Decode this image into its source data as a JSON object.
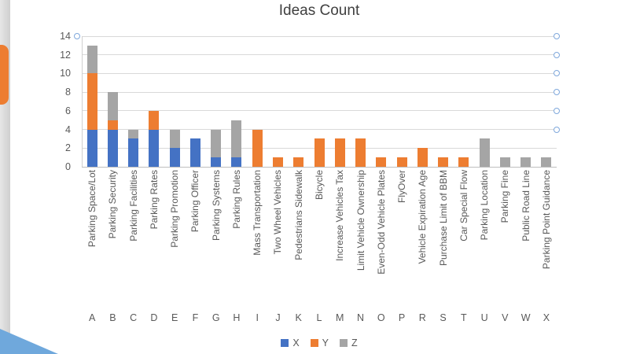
{
  "chart_data": {
    "type": "bar",
    "stacked": true,
    "title": "Ideas Count",
    "categories": [
      "Parking Space/Lot",
      "Parking Security",
      "Parking Facilities",
      "Parking Rates",
      "Parking Promotion",
      "Parking Officer",
      "Parking Systems",
      "Parking Rules",
      "Mass Transportation",
      "Two Wheel Vehicles",
      "Pedestrians Sidewalk",
      "Bicycle",
      "Increase Vehicles Tax",
      "Limit Vehicle Ownership",
      "Even-Odd Vehicle Plates",
      "FlyOver",
      "Vehicle Expiration Age",
      "Purchase Limit of BBM",
      "Car Special Flow",
      "Parking Location",
      "Parking Fine",
      "Public Road Line",
      "Parking Point Guidance"
    ],
    "category_letters": [
      "A",
      "B",
      "C",
      "D",
      "E",
      "F",
      "G",
      "H",
      "I",
      "J",
      "K",
      "L",
      "M",
      "N",
      "O",
      "P",
      "R",
      "S",
      "T",
      "U",
      "V",
      "W",
      "X"
    ],
    "series": [
      {
        "name": "X",
        "color": "#4472C4",
        "values": [
          4,
          4,
          3,
          4,
          2,
          3,
          1,
          1,
          0,
          0,
          0,
          0,
          0,
          0,
          0,
          0,
          0,
          0,
          0,
          0,
          0,
          0,
          0
        ]
      },
      {
        "name": "Y",
        "color": "#ED7D31",
        "values": [
          6,
          1,
          0,
          2,
          0,
          0,
          0,
          0,
          4,
          1,
          1,
          3,
          3,
          3,
          1,
          1,
          2,
          1,
          1,
          0,
          0,
          0,
          0
        ]
      },
      {
        "name": "Z",
        "color": "#A5A5A5",
        "values": [
          3,
          3,
          1,
          0,
          2,
          0,
          3,
          4,
          0,
          0,
          0,
          0,
          0,
          0,
          0,
          0,
          0,
          0,
          0,
          3,
          1,
          1,
          1
        ]
      }
    ],
    "totals": [
      13,
      8,
      4,
      6,
      4,
      3,
      4,
      5,
      4,
      1,
      1,
      3,
      3,
      3,
      1,
      1,
      2,
      1,
      1,
      3,
      1,
      1,
      1
    ],
    "yticks": [
      0,
      2,
      4,
      6,
      8,
      10,
      12,
      14
    ],
    "ylim": [
      0,
      14
    ],
    "grid": true,
    "legend_position": "bottom",
    "legend_entries": [
      "X",
      "Y",
      "Z"
    ],
    "colors": {
      "title_text": "#404040",
      "axis_text": "#595959",
      "gridline": "#D9D9D9",
      "axis_line": "#BFBFBF",
      "selection_handle": "#7FA8DC"
    }
  }
}
